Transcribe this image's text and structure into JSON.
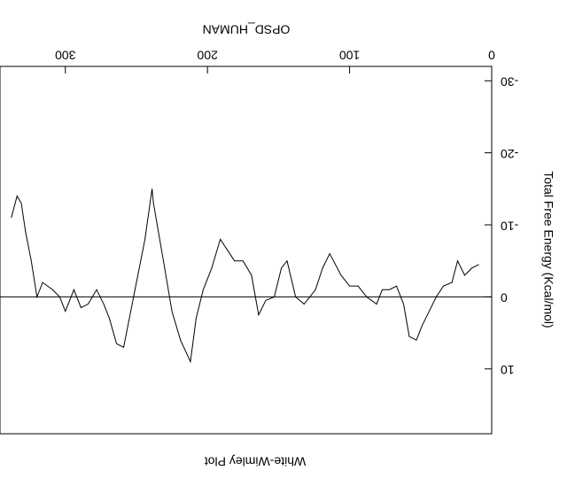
{
  "chart_data": {
    "type": "line",
    "title": "White-Wimley Plot",
    "x_label": "OPSD_HUMAN",
    "y_label": "Total Free Energy (Kcal/mol)",
    "x": [
      9,
      14,
      19,
      24,
      28,
      34,
      39,
      44,
      49,
      53,
      58,
      62,
      67,
      72,
      77,
      81,
      88,
      94,
      100,
      106,
      114,
      119,
      124,
      128,
      132,
      138,
      144,
      148,
      153,
      159,
      164,
      169,
      175,
      181,
      191,
      197,
      203,
      208,
      212,
      219,
      225,
      231,
      238,
      239,
      244,
      250,
      254,
      259,
      264,
      269,
      273,
      278,
      284,
      289,
      294,
      300,
      304,
      309,
      316,
      320,
      324,
      328,
      331,
      334,
      338
    ],
    "series": [
      {
        "name": "OPSD_HUMAN",
        "color": "#000000",
        "values": [
          -4.5,
          -4,
          -3,
          -5,
          -2,
          -1.5,
          0,
          2,
          4,
          6,
          5.5,
          1,
          -1.5,
          -1,
          -1,
          1,
          0,
          -1.5,
          -1.5,
          -3,
          -6,
          -4,
          -1,
          0,
          1,
          0,
          -5,
          -4,
          0,
          0.5,
          2.5,
          -3,
          -5,
          -5,
          -8,
          -4,
          -1,
          3,
          9,
          6,
          2,
          -5,
          -13,
          -15,
          -8,
          -2,
          2,
          7,
          6.5,
          3,
          1,
          -1,
          1,
          1.5,
          -1,
          2,
          0,
          -1,
          -2,
          0,
          -5,
          -9,
          -13,
          -14,
          -11
        ]
      }
    ],
    "xlim": [
      0,
      346
    ],
    "xticks": [
      0,
      100,
      200,
      300
    ],
    "ylim": [
      -32,
      19
    ],
    "yticks": [
      -30,
      -20,
      -10,
      0,
      10
    ]
  }
}
